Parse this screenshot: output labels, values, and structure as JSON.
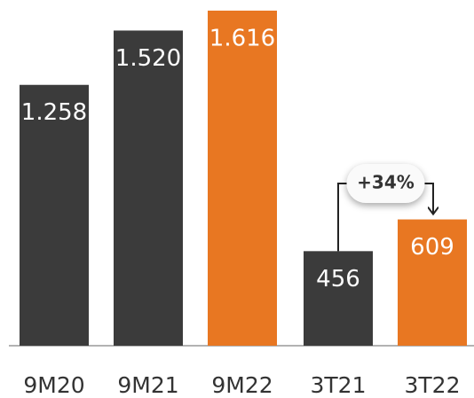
{
  "chart_data": {
    "type": "bar",
    "categories": [
      "9M20",
      "9M21",
      "9M22",
      "3T21",
      "3T22"
    ],
    "values": [
      1258,
      1520,
      1616,
      456,
      609
    ],
    "value_labels": [
      "1.258",
      "1.520",
      "1.616",
      "456",
      "609"
    ],
    "colors": [
      "#3b3b3b",
      "#3b3b3b",
      "#e87722",
      "#3b3b3b",
      "#e87722"
    ],
    "ylim": [
      0,
      1616
    ],
    "annotation": "+34%"
  }
}
